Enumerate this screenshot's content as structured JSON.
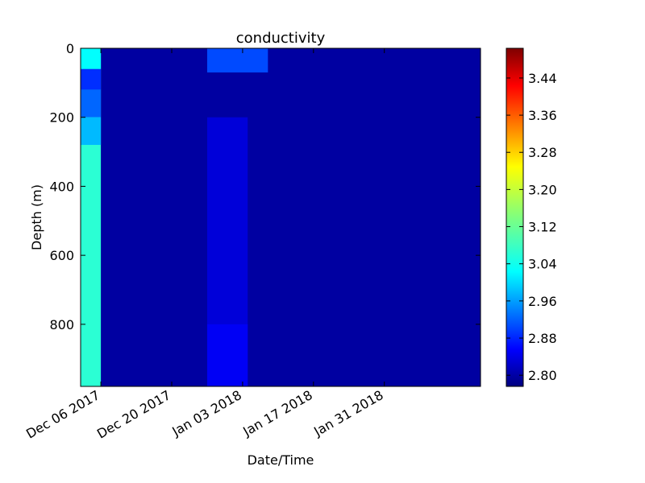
{
  "chart_data": {
    "type": "heatmap",
    "title": "conductivity",
    "xlabel": "Date/Time",
    "ylabel": "Depth (m)",
    "xlim": [
      "2017-12-02",
      "2018-02-19"
    ],
    "ylim": [
      0,
      980
    ],
    "y_inverted": true,
    "x_ticks": [
      {
        "date": "2017-12-06",
        "label": "Dec 06 2017"
      },
      {
        "date": "2017-12-20",
        "label": "Dec 20 2017"
      },
      {
        "date": "2018-01-03",
        "label": "Jan 03 2018"
      },
      {
        "date": "2018-01-17",
        "label": "Jan 17 2018"
      },
      {
        "date": "2018-01-31",
        "label": "Jan 31 2018"
      }
    ],
    "y_ticks": [
      0,
      200,
      400,
      600,
      800
    ],
    "colorbar": {
      "colormap": "jet",
      "range": [
        2.776,
        3.504
      ],
      "ticks": [
        "2.80",
        "2.88",
        "2.96",
        "3.04",
        "3.12",
        "3.20",
        "3.28",
        "3.36",
        "3.44"
      ]
    },
    "background_value": 2.8,
    "regions": [
      {
        "start": "2017-12-02",
        "end": "2017-12-06",
        "depth_min": 0,
        "depth_max": 980,
        "value": 3.08
      },
      {
        "start": "2017-12-02",
        "end": "2017-12-06",
        "depth_min": 0,
        "depth_max": 60,
        "value": 3.05
      },
      {
        "start": "2017-12-02",
        "end": "2017-12-06",
        "depth_min": 60,
        "depth_max": 120,
        "value": 2.9
      },
      {
        "start": "2017-12-02",
        "end": "2017-12-06",
        "depth_min": 120,
        "depth_max": 200,
        "value": 2.94
      },
      {
        "start": "2017-12-02",
        "end": "2017-12-06",
        "depth_min": 200,
        "depth_max": 280,
        "value": 3.0
      },
      {
        "start": "2017-12-27",
        "end": "2018-01-04",
        "depth_min": 200,
        "depth_max": 980,
        "value": 2.84
      },
      {
        "start": "2017-12-27",
        "end": "2018-01-04",
        "depth_min": 800,
        "depth_max": 980,
        "value": 2.86
      },
      {
        "start": "2017-12-27",
        "end": "2018-01-08",
        "depth_min": 0,
        "depth_max": 70,
        "value": 2.92
      }
    ]
  }
}
